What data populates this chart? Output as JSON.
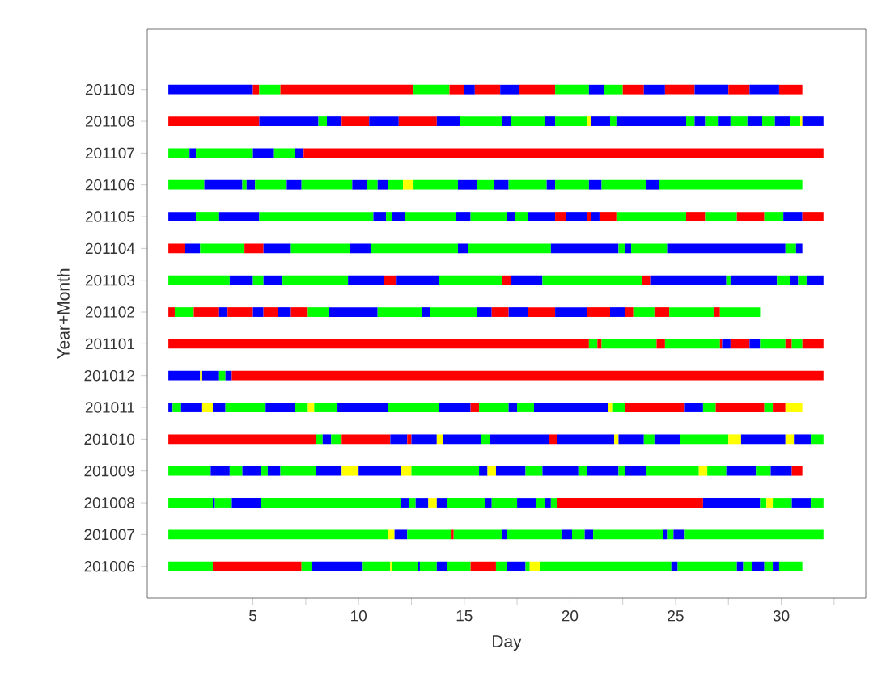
{
  "chart_data": {
    "type": "bar",
    "orientation": "horizontal",
    "xlabel": "Day",
    "ylabel": "Year+Month",
    "categories": [
      "201109",
      "201108",
      "201107",
      "201106",
      "201105",
      "201104",
      "201103",
      "201102",
      "201101",
      "201012",
      "201011",
      "201010",
      "201009",
      "201008",
      "201007",
      "201006"
    ],
    "xlim": [
      0,
      34
    ],
    "xticks": [
      5,
      {
        "value": 7.5,
        "label": null
      },
      10,
      {
        "value": 12.5,
        "label": null
      },
      15,
      {
        "value": 17.5,
        "label": null
      },
      20,
      {
        "value": 22.5,
        "label": null
      },
      25,
      {
        "value": 27.5,
        "label": null
      },
      30,
      {
        "value": 32.5,
        "label": null
      }
    ],
    "series": [
      {
        "base": [
          1,
          1,
          1,
          1,
          1,
          1,
          1,
          1,
          1,
          1,
          1,
          1,
          1,
          1,
          1,
          1
        ],
        "values": [
          4.0,
          4.3,
          1.0,
          1.7,
          1.3,
          0.8,
          2.9,
          0.3,
          19.9,
          1.5,
          0.2,
          7.0,
          2.0,
          2.1,
          10.4,
          2.1
        ],
        "colors": [
          "#0000ff",
          "#ff0000",
          "#00ff00",
          "#00ff00",
          "#0000ff",
          "#ff0000",
          "#00ff00",
          "#ff0000",
          "#ff0000",
          "#0000ff",
          "#0000ff",
          "#ff0000",
          "#00ff00",
          "#00ff00",
          "#00ff00",
          "#00ff00"
        ]
      },
      {
        "base": [
          5.0,
          5.3,
          2.0,
          2.7,
          2.3,
          1.8,
          3.9,
          1.3,
          20.9,
          2.5,
          1.2,
          8.0,
          3.0,
          3.1,
          11.4,
          3.1
        ],
        "values": [
          0.3,
          2.8,
          0.3,
          1.8,
          1.1,
          0.7,
          1.1,
          0.9,
          0.4,
          0.1,
          0.4,
          0.3,
          0.9,
          0.1,
          0.3,
          4.2
        ],
        "colors": [
          "#ff0000",
          "#0000ff",
          "#0000ff",
          "#0000ff",
          "#00ff00",
          "#0000ff",
          "#0000ff",
          "#00ff00",
          "#00ff00",
          "#ffff00",
          "#00ff00",
          "#00ff00",
          "#0000ff",
          "#0000ff",
          "#ffff00",
          "#ff0000"
        ]
      },
      {
        "base": [
          5.3,
          8.1,
          2.3,
          4.5,
          3.4,
          2.5,
          5.0,
          2.2,
          21.3,
          2.6,
          1.6,
          8.3,
          3.9,
          3.2,
          11.7,
          7.3
        ],
        "values": [
          1.0,
          0.4,
          2.7,
          0.2,
          1.9,
          2.1,
          0.5,
          1.2,
          0.2,
          0.8,
          1.0,
          0.4,
          0.6,
          0.8,
          0.6,
          0.5
        ],
        "colors": [
          "#00ff00",
          "#00ff00",
          "#00ff00",
          "#00ff00",
          "#0000ff",
          "#00ff00",
          "#00ff00",
          "#ff0000",
          "#ff0000",
          "#0000ff",
          "#0000ff",
          "#0000ff",
          "#00ff00",
          "#00ff00",
          "#0000ff",
          "#00ff00"
        ]
      },
      {
        "base": [
          6.3,
          8.5,
          5.0,
          4.7,
          5.3,
          4.6,
          5.5,
          3.4,
          21.5,
          3.4,
          2.6,
          8.7,
          4.5,
          4.0,
          12.3,
          7.8
        ],
        "values": [
          6.3,
          0.7,
          1.0,
          0.4,
          5.4,
          0.9,
          0.9,
          0.4,
          2.6,
          0.3,
          0.5,
          0.5,
          0.9,
          1.4,
          2.1,
          2.4
        ],
        "colors": [
          "#ff0000",
          "#0000ff",
          "#0000ff",
          "#0000ff",
          "#00ff00",
          "#ff0000",
          "#0000ff",
          "#0000ff",
          "#00ff00",
          "#00ff00",
          "#ffff00",
          "#00ff00",
          "#0000ff",
          "#0000ff",
          "#00ff00",
          "#0000ff"
        ]
      },
      {
        "base": [
          12.6,
          9.2,
          6.0,
          5.1,
          10.7,
          5.5,
          6.4,
          3.8,
          24.1,
          3.7,
          3.1,
          9.2,
          5.4,
          5.4,
          14.4,
          10.2
        ],
        "values": [
          1.7,
          1.3,
          1.0,
          1.5,
          0.6,
          1.3,
          3.1,
          1.2,
          0.4,
          0.3,
          0.6,
          2.3,
          0.3,
          6.6,
          0.1,
          1.3
        ],
        "colors": [
          "#00ff00",
          "#ff0000",
          "#00ff00",
          "#00ff00",
          "#0000ff",
          "#0000ff",
          "#00ff00",
          "#ff0000",
          "#ff0000",
          "#0000ff",
          "#0000ff",
          "#ff0000",
          "#00ff00",
          "#00ff00",
          "#ff0000",
          "#00ff00"
        ]
      },
      {
        "base": [
          14.3,
          10.5,
          7.0,
          6.6,
          11.3,
          6.8,
          9.5,
          5.0,
          24.5,
          4.0,
          3.7,
          11.5,
          5.7,
          12.0,
          14.5,
          11.5
        ],
        "values": [
          0.7,
          1.4,
          0.4,
          0.7,
          0.3,
          2.8,
          1.7,
          0.5,
          2.6,
          28.0,
          1.9,
          0.8,
          0.6,
          0.4,
          2.3,
          0.1
        ],
        "colors": [
          "#ff0000",
          "#0000ff",
          "#0000ff",
          "#0000ff",
          "#00ff00",
          "#00ff00",
          "#0000ff",
          "#0000ff",
          "#00ff00",
          "#ff0000",
          "#00ff00",
          "#0000ff",
          "#0000ff",
          "#0000ff",
          "#00ff00",
          "#ffff00"
        ]
      },
      {
        "base": [
          15.0,
          11.9,
          7.4,
          7.3,
          11.6,
          9.6,
          11.2,
          5.5,
          27.1,
          null,
          5.6,
          12.3,
          6.3,
          12.4,
          16.8,
          11.6
        ],
        "values": [
          0.5,
          1.8,
          24.6,
          2.4,
          0.6,
          1.0,
          0.6,
          0.7,
          0.1,
          null,
          1.4,
          0.2,
          1.7,
          0.3,
          0.2,
          1.2
        ],
        "colors": [
          "#0000ff",
          "#ff0000",
          "#ff0000",
          "#00ff00",
          "#0000ff",
          "#0000ff",
          "#ff0000",
          "#ff0000",
          "#ff0000",
          null,
          "#0000ff",
          "#ff0000",
          "#00ff00",
          "#00ff00",
          "#0000ff",
          "#00ff00"
        ]
      },
      {
        "base": [
          15.5,
          13.7,
          null,
          9.7,
          12.2,
          10.6,
          11.8,
          6.2,
          27.2,
          null,
          7.0,
          12.5,
          8.0,
          12.7,
          17.0,
          12.8
        ],
        "values": [
          1.2,
          1.1,
          null,
          0.7,
          2.4,
          4.1,
          2.0,
          0.6,
          0.4,
          null,
          0.6,
          1.2,
          1.2,
          0.6,
          2.6,
          0.1
        ],
        "colors": [
          "#ff0000",
          "#0000ff",
          null,
          "#0000ff",
          "#00ff00",
          "#00ff00",
          "#0000ff",
          "#0000ff",
          "#0000ff",
          null,
          "#00ff00",
          "#0000ff",
          "#0000ff",
          "#0000ff",
          "#00ff00",
          "#0000ff"
        ]
      },
      {
        "base": [
          16.7,
          14.8,
          null,
          10.4,
          14.6,
          14.7,
          13.8,
          6.8,
          27.6,
          null,
          7.6,
          13.7,
          9.2,
          13.3,
          19.6,
          12.9
        ],
        "values": [
          0.9,
          2.0,
          null,
          0.5,
          0.7,
          0.5,
          3.0,
          0.8,
          0.9,
          null,
          0.3,
          0.3,
          0.8,
          0.4,
          0.5,
          0.8
        ],
        "colors": [
          "#0000ff",
          "#00ff00",
          null,
          "#00ff00",
          "#0000ff",
          "#0000ff",
          "#00ff00",
          "#ff0000",
          "#ff0000",
          null,
          "#ffff00",
          "#ffff00",
          "#ffff00",
          "#ffff00",
          "#0000ff",
          "#00ff00"
        ]
      },
      {
        "base": [
          17.6,
          16.8,
          null,
          10.9,
          15.3,
          15.2,
          16.8,
          7.6,
          28.5,
          null,
          7.9,
          14.0,
          10.0,
          13.7,
          20.1,
          13.7
        ],
        "values": [
          1.7,
          0.4,
          null,
          0.5,
          1.7,
          3.9,
          0.4,
          1.0,
          0.5,
          null,
          1.1,
          1.8,
          2.0,
          0.5,
          0.6,
          0.5
        ],
        "colors": [
          "#ff0000",
          "#0000ff",
          null,
          "#0000ff",
          "#00ff00",
          "#00ff00",
          "#ff0000",
          "#00ff00",
          "#0000ff",
          null,
          "#00ff00",
          "#0000ff",
          "#0000ff",
          "#0000ff",
          "#00ff00",
          "#0000ff"
        ]
      },
      {
        "base": [
          19.3,
          17.2,
          null,
          11.4,
          17.0,
          19.1,
          17.2,
          8.6,
          29.0,
          null,
          9.0,
          15.8,
          12.0,
          14.2,
          20.7,
          14.2
        ],
        "values": [
          1.6,
          1.6,
          null,
          0.7,
          0.4,
          3.2,
          1.5,
          2.3,
          1.2,
          null,
          2.4,
          0.4,
          0.5,
          1.8,
          0.4,
          1.1
        ],
        "colors": [
          "#00ff00",
          "#00ff00",
          null,
          "#00ff00",
          "#0000ff",
          "#0000ff",
          "#0000ff",
          "#0000ff",
          "#00ff00",
          null,
          "#0000ff",
          "#00ff00",
          "#ffff00",
          "#00ff00",
          "#0000ff",
          "#00ff00"
        ]
      },
      {
        "base": [
          20.9,
          18.8,
          null,
          12.1,
          17.4,
          22.3,
          18.7,
          10.9,
          30.2,
          null,
          11.4,
          16.2,
          12.5,
          16.0,
          21.1,
          15.3
        ],
        "values": [
          0.7,
          0.5,
          null,
          0.5,
          0.6,
          0.3,
          4.7,
          2.1,
          0.3,
          null,
          2.4,
          2.8,
          3.2,
          0.3,
          3.3,
          1.2
        ],
        "colors": [
          "#0000ff",
          "#0000ff",
          null,
          "#ffff00",
          "#00ff00",
          "#00ff00",
          "#00ff00",
          "#00ff00",
          "#ff0000",
          null,
          "#00ff00",
          "#0000ff",
          "#00ff00",
          "#0000ff",
          "#00ff00",
          "#ff0000"
        ]
      },
      {
        "base": [
          21.6,
          19.3,
          null,
          12.6,
          18.0,
          22.6,
          23.4,
          13.0,
          30.5,
          null,
          13.8,
          19.0,
          15.7,
          16.3,
          24.4,
          16.5
        ],
        "values": [
          0.9,
          1.5,
          null,
          2.1,
          1.3,
          0.3,
          0.4,
          0.4,
          0.5,
          null,
          1.5,
          0.4,
          0.4,
          1.2,
          0.2,
          0.5
        ],
        "colors": [
          "#00ff00",
          "#00ff00",
          null,
          "#00ff00",
          "#0000ff",
          "#0000ff",
          "#ff0000",
          "#0000ff",
          "#00ff00",
          null,
          "#0000ff",
          "#ff0000",
          "#0000ff",
          "#00ff00",
          "#0000ff",
          "#00ff00"
        ]
      },
      {
        "base": [
          22.5,
          20.8,
          null,
          14.7,
          19.3,
          22.9,
          23.8,
          13.4,
          31.0,
          null,
          15.3,
          19.4,
          16.1,
          17.5,
          24.6,
          17.0
        ],
        "values": [
          1.0,
          0.2,
          null,
          0.9,
          0.5,
          1.7,
          3.6,
          2.2,
          1.0,
          null,
          0.4,
          2.7,
          0.4,
          0.9,
          0.3,
          0.9
        ],
        "colors": [
          "#ff0000",
          "#ffff00",
          null,
          "#0000ff",
          "#ff0000",
          "#00ff00",
          "#0000ff",
          "#00ff00",
          "#ff0000",
          null,
          "#ff0000",
          "#0000ff",
          "#ffff00",
          "#0000ff",
          "#00ff00",
          "#0000ff"
        ]
      },
      {
        "base": [
          23.5,
          21.0,
          null,
          15.6,
          19.8,
          24.6,
          27.4,
          15.6,
          null,
          null,
          15.7,
          22.1,
          16.5,
          18.4,
          24.9,
          17.9
        ],
        "values": [
          1.0,
          0.9,
          null,
          0.8,
          1.0,
          5.6,
          0.2,
          0.7,
          null,
          null,
          1.4,
          0.2,
          1.4,
          0.4,
          0.5,
          0.2
        ],
        "colors": [
          "#0000ff",
          "#0000ff",
          null,
          "#00ff00",
          "#0000ff",
          "#0000ff",
          "#00ff00",
          "#0000ff",
          null,
          null,
          "#00ff00",
          "#ffff00",
          "#0000ff",
          "#00ff00",
          "#0000ff",
          "#00ff00"
        ]
      },
      {
        "base": [
          24.5,
          21.9,
          null,
          16.4,
          20.8,
          30.2,
          27.6,
          16.3,
          null,
          null,
          17.1,
          22.3,
          17.9,
          18.8,
          25.4,
          18.1
        ],
        "values": [
          1.4,
          0.3,
          null,
          0.7,
          0.2,
          0.5,
          2.2,
          0.8,
          null,
          null,
          0.4,
          1.2,
          0.8,
          0.3,
          6.6,
          0.5
        ],
        "colors": [
          "#ff0000",
          "#00ff00",
          null,
          "#0000ff",
          "#ff0000",
          "#00ff00",
          "#0000ff",
          "#ff0000",
          null,
          null,
          "#0000ff",
          "#0000ff",
          "#00ff00",
          "#0000ff",
          "#00ff00",
          "#ffff00"
        ]
      },
      {
        "base": [
          25.9,
          22.2,
          null,
          17.1,
          21.0,
          30.7,
          29.8,
          17.1,
          null,
          null,
          17.5,
          23.5,
          18.7,
          19.1,
          null,
          18.6
        ],
        "values": [
          1.6,
          3.3,
          null,
          1.8,
          0.4,
          0.3,
          0.6,
          0.9,
          null,
          null,
          0.8,
          0.5,
          1.7,
          0.3,
          null,
          6.2
        ],
        "colors": [
          "#0000ff",
          "#0000ff",
          null,
          "#00ff00",
          "#0000ff",
          "#0000ff",
          "#00ff00",
          "#0000ff",
          null,
          null,
          "#00ff00",
          "#00ff00",
          "#0000ff",
          "#00ff00",
          null,
          "#00ff00"
        ]
      },
      {
        "base": [
          27.5,
          25.5,
          null,
          18.9,
          21.4,
          null,
          30.4,
          18.0,
          null,
          null,
          18.3,
          24.0,
          20.4,
          19.4,
          null,
          24.8
        ],
        "values": [
          1.0,
          0.4,
          null,
          0.4,
          0.8,
          null,
          0.4,
          1.3,
          null,
          null,
          3.5,
          1.2,
          0.4,
          6.9,
          null,
          0.3
        ],
        "colors": [
          "#ff0000",
          "#00ff00",
          null,
          "#0000ff",
          "#ff0000",
          null,
          "#0000ff",
          "#ff0000",
          null,
          null,
          "#0000ff",
          "#0000ff",
          "#00ff00",
          "#ff0000",
          null,
          "#0000ff"
        ]
      },
      {
        "base": [
          28.5,
          25.9,
          null,
          19.3,
          22.2,
          null,
          30.8,
          19.3,
          null,
          null,
          21.8,
          25.2,
          20.8,
          26.3,
          null,
          25.1
        ],
        "values": [
          1.4,
          0.5,
          null,
          1.6,
          3.3,
          null,
          0.4,
          1.5,
          null,
          null,
          0.2,
          2.3,
          1.5,
          2.7,
          null,
          2.8
        ],
        "colors": [
          "#0000ff",
          "#0000ff",
          null,
          "#00ff00",
          "#00ff00",
          null,
          "#00ff00",
          "#0000ff",
          null,
          null,
          "#ffff00",
          "#00ff00",
          "#0000ff",
          "#0000ff",
          null,
          "#00ff00"
        ]
      },
      {
        "base": [
          29.9,
          26.4,
          null,
          20.9,
          25.5,
          null,
          31.2,
          20.8,
          null,
          null,
          22.0,
          27.5,
          22.3,
          29.0,
          null,
          27.9
        ],
        "values": [
          1.1,
          0.6,
          null,
          0.6,
          0.9,
          null,
          0.8,
          1.1,
          null,
          null,
          0.6,
          0.6,
          0.3,
          0.3,
          null,
          0.3
        ],
        "colors": [
          "#ff0000",
          "#00ff00",
          null,
          "#0000ff",
          "#ff0000",
          null,
          "#0000ff",
          "#ff0000",
          null,
          null,
          "#00ff00",
          "#ffff00",
          "#00ff00",
          "#00ff00",
          null,
          "#0000ff"
        ]
      },
      {
        "base": [
          null,
          27.0,
          null,
          21.5,
          26.4,
          null,
          null,
          21.9,
          null,
          null,
          22.6,
          28.1,
          22.6,
          29.3,
          null,
          28.2
        ],
        "values": [
          null,
          0.6,
          null,
          2.1,
          1.5,
          null,
          null,
          0.7,
          null,
          null,
          2.8,
          2.1,
          1.0,
          0.3,
          null,
          0.4
        ],
        "colors": [
          null,
          "#0000ff",
          null,
          "#00ff00",
          "#00ff00",
          null,
          null,
          "#0000ff",
          null,
          null,
          "#ff0000",
          "#0000ff",
          "#0000ff",
          "#ffff00",
          null,
          "#00ff00"
        ]
      },
      {
        "base": [
          null,
          27.6,
          null,
          23.6,
          27.9,
          null,
          null,
          22.6,
          null,
          null,
          25.4,
          30.2,
          23.6,
          29.6,
          null,
          28.6
        ],
        "values": [
          null,
          0.8,
          null,
          0.6,
          1.3,
          null,
          null,
          0.4,
          null,
          null,
          0.9,
          0.4,
          2.5,
          0.9,
          null,
          0.6
        ],
        "colors": [
          null,
          "#00ff00",
          null,
          "#0000ff",
          "#ff0000",
          null,
          null,
          "#ff0000",
          null,
          null,
          "#0000ff",
          "#ffff00",
          "#00ff00",
          "#00ff00",
          null,
          "#0000ff"
        ]
      },
      {
        "base": [
          null,
          28.4,
          null,
          24.2,
          29.2,
          null,
          null,
          23.0,
          null,
          null,
          26.3,
          30.6,
          26.1,
          30.5,
          null,
          29.2
        ],
        "values": [
          null,
          0.7,
          null,
          6.8,
          0.9,
          null,
          null,
          1.0,
          null,
          null,
          0.6,
          0.8,
          0.4,
          0.9,
          null,
          0.4
        ],
        "colors": [
          null,
          "#0000ff",
          null,
          "#00ff00",
          "#00ff00",
          null,
          null,
          "#00ff00",
          null,
          null,
          "#00ff00",
          "#0000ff",
          "#ffff00",
          "#0000ff",
          null,
          "#00ff00"
        ]
      },
      {
        "base": [
          null,
          29.1,
          null,
          null,
          30.1,
          null,
          null,
          24.0,
          null,
          null,
          26.9,
          31.4,
          26.5,
          31.4,
          null,
          29.6
        ],
        "values": [
          null,
          0.6,
          null,
          null,
          0.9,
          null,
          null,
          0.7,
          null,
          null,
          2.3,
          0.6,
          0.9,
          0.6,
          null,
          0.3
        ],
        "colors": [
          null,
          "#00ff00",
          null,
          null,
          "#0000ff",
          null,
          null,
          "#ff0000",
          null,
          null,
          "#ff0000",
          "#00ff00",
          "#00ff00",
          "#00ff00",
          null,
          "#0000ff"
        ]
      },
      {
        "base": [
          null,
          29.7,
          null,
          null,
          31.0,
          null,
          null,
          24.7,
          null,
          null,
          29.2,
          null,
          27.4,
          null,
          null,
          29.9
        ],
        "values": [
          null,
          0.7,
          null,
          null,
          1.0,
          null,
          null,
          2.1,
          null,
          null,
          0.4,
          null,
          1.4,
          null,
          null,
          1.1
        ],
        "colors": [
          null,
          "#0000ff",
          null,
          null,
          "#ff0000",
          null,
          null,
          "#00ff00",
          null,
          null,
          "#00ff00",
          null,
          "#0000ff",
          null,
          null,
          "#00ff00"
        ]
      },
      {
        "base": [
          null,
          30.4,
          null,
          null,
          null,
          null,
          null,
          26.8,
          null,
          null,
          29.6,
          null,
          28.8,
          null,
          null,
          null
        ],
        "values": [
          null,
          0.5,
          null,
          null,
          null,
          null,
          null,
          0.3,
          null,
          null,
          0.6,
          null,
          0.7,
          null,
          null,
          null
        ],
        "colors": [
          null,
          "#00ff00",
          null,
          null,
          null,
          null,
          null,
          "#ff0000",
          null,
          null,
          "#ff0000",
          null,
          "#00ff00",
          null,
          null,
          null
        ]
      },
      {
        "base": [
          null,
          30.9,
          null,
          null,
          null,
          null,
          null,
          27.1,
          null,
          null,
          30.2,
          null,
          29.5,
          null,
          null,
          null
        ],
        "values": [
          null,
          0.1,
          null,
          null,
          null,
          null,
          null,
          1.9,
          null,
          null,
          0.8,
          null,
          1.0,
          null,
          null,
          null
        ],
        "colors": [
          null,
          "#ffff00",
          null,
          null,
          null,
          null,
          null,
          "#00ff00",
          null,
          null,
          "#ffff00",
          null,
          "#0000ff",
          null,
          null,
          null
        ]
      },
      {
        "base": [
          null,
          31.0,
          null,
          null,
          null,
          null,
          null,
          null,
          null,
          null,
          null,
          null,
          30.5,
          null,
          null,
          null
        ],
        "values": [
          null,
          1.0,
          null,
          null,
          null,
          null,
          null,
          null,
          null,
          null,
          null,
          null,
          0.5,
          null,
          null,
          null
        ],
        "colors": [
          null,
          "#0000ff",
          null,
          null,
          null,
          null,
          null,
          null,
          null,
          null,
          null,
          null,
          "#ff0000",
          null,
          null,
          null
        ]
      }
    ]
  }
}
